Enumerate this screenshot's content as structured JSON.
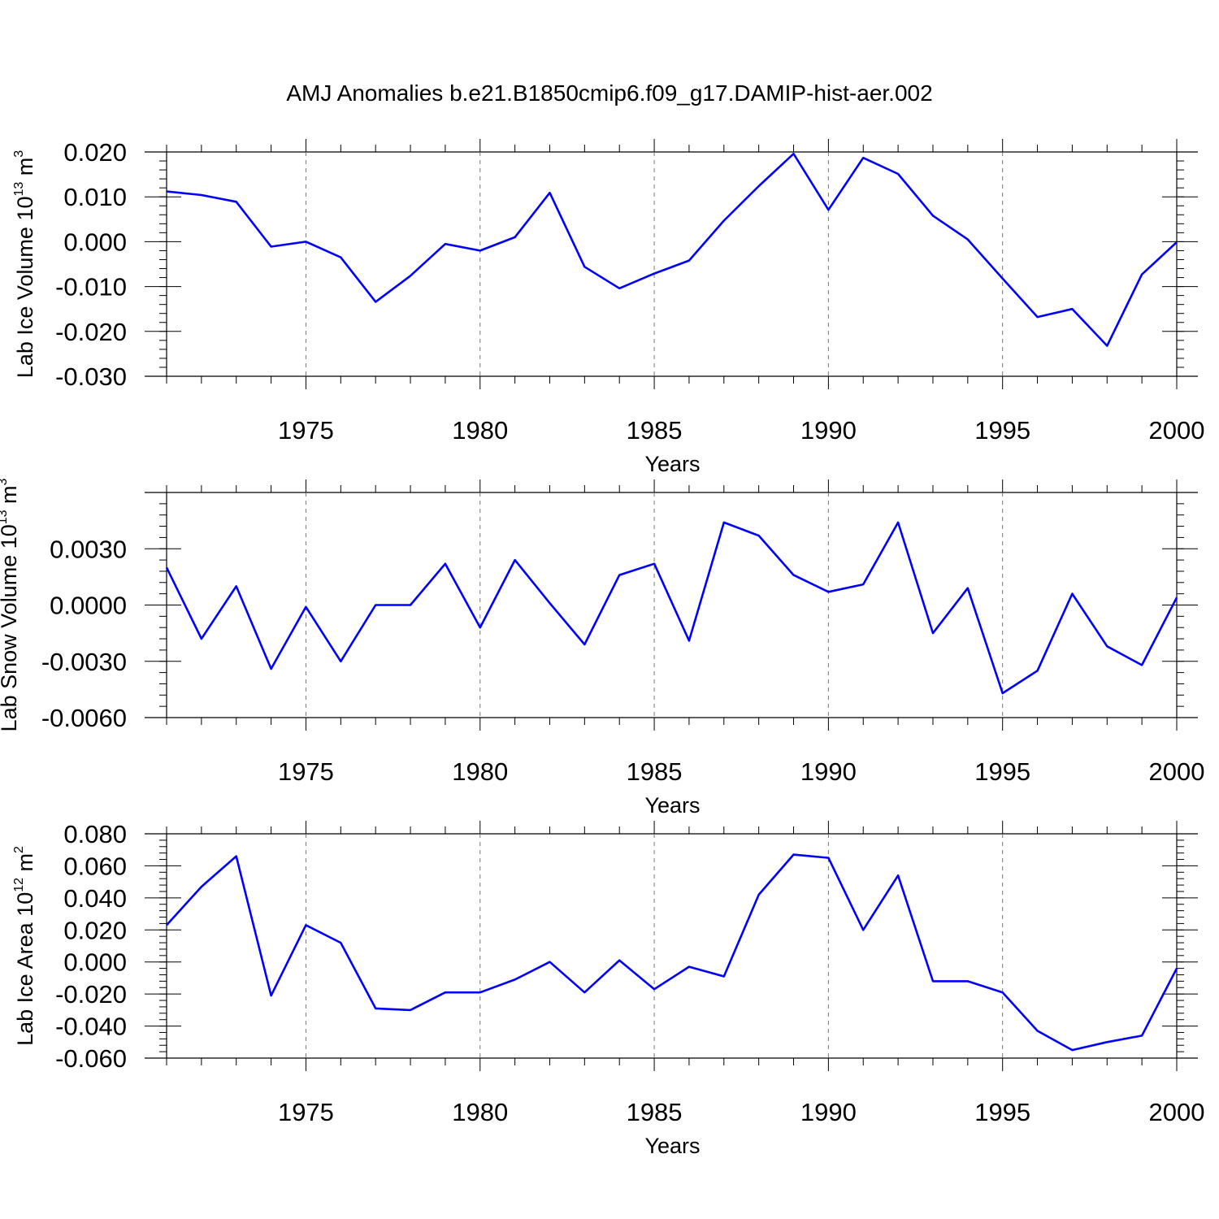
{
  "title": "AMJ Anomalies b.e21.B1850cmip6.f09_g17.DAMIP-hist-aer.002",
  "colors": {
    "line": "#0000ff",
    "axis": "#000000",
    "grid": "#777777"
  },
  "chart_data": [
    {
      "type": "line",
      "name": "ice-volume",
      "ylabel": {
        "base": "Lab Ice Volume 10",
        "exp": "13",
        "unit": " m",
        "unit_exp": "3"
      },
      "xlabel": "Years",
      "xlim": [
        1971,
        2000
      ],
      "ylim": [
        -0.03,
        0.02
      ],
      "x_ticks": [
        1975,
        1980,
        1985,
        1990,
        1995,
        2000
      ],
      "x_tick_labels": [
        "1975",
        "1980",
        "1985",
        "1990",
        "1995",
        "2000"
      ],
      "y_ticks": [
        -0.03,
        -0.02,
        -0.01,
        0.0,
        0.01,
        0.02
      ],
      "y_tick_labels": [
        "-0.030",
        "-0.020",
        "-0.010",
        "0.000",
        "0.010",
        "0.020"
      ],
      "y_minor_step": 0.002,
      "grid": "vertical dashed at major x ticks",
      "x": [
        1971,
        1972,
        1973,
        1974,
        1975,
        1976,
        1977,
        1978,
        1979,
        1980,
        1981,
        1982,
        1983,
        1984,
        1985,
        1986,
        1987,
        1988,
        1989,
        1990,
        1991,
        1992,
        1993,
        1994,
        1995,
        1996,
        1997,
        1998,
        1999,
        2000
      ],
      "values": [
        0.0112,
        0.0104,
        0.0089,
        -0.0011,
        0.0,
        -0.0035,
        -0.0134,
        -0.0076,
        -0.0005,
        -0.002,
        0.001,
        0.0109,
        -0.0056,
        -0.0104,
        -0.0071,
        -0.0042,
        0.0047,
        0.0124,
        0.0196,
        0.0071,
        0.0187,
        0.0151,
        0.0058,
        0.0005,
        -0.0082,
        -0.0168,
        -0.015,
        -0.0232,
        -0.0073,
        -0.0001
      ]
    },
    {
      "type": "line",
      "name": "snow-volume",
      "ylabel": {
        "base": "Lab Snow Volume 10",
        "exp": "13",
        "unit": " m",
        "unit_exp": "3"
      },
      "xlabel": "Years",
      "xlim": [
        1971,
        2000
      ],
      "ylim": [
        -0.006,
        0.006
      ],
      "x_ticks": [
        1975,
        1980,
        1985,
        1990,
        1995,
        2000
      ],
      "x_tick_labels": [
        "1975",
        "1980",
        "1985",
        "1990",
        "1995",
        "2000"
      ],
      "y_ticks": [
        -0.006,
        -0.003,
        0.0,
        0.003
      ],
      "y_tick_labels": [
        "-0.0060",
        "-0.0030",
        "0.0000",
        "0.0030"
      ],
      "y_minor_step": 0.0006,
      "grid": "vertical dashed at major x ticks",
      "x": [
        1971,
        1972,
        1973,
        1974,
        1975,
        1976,
        1977,
        1978,
        1979,
        1980,
        1981,
        1982,
        1983,
        1984,
        1985,
        1986,
        1987,
        1988,
        1989,
        1990,
        1991,
        1992,
        1993,
        1994,
        1995,
        1996,
        1997,
        1998,
        1999,
        2000
      ],
      "values": [
        0.002,
        -0.0018,
        0.001,
        -0.0034,
        -0.0001,
        -0.003,
        0.0,
        0.0,
        0.0022,
        -0.0012,
        0.0024,
        0.0001,
        -0.0021,
        0.0016,
        0.0022,
        -0.0019,
        0.0044,
        0.0037,
        0.0016,
        0.0007,
        0.0011,
        0.0044,
        -0.0015,
        0.0009,
        -0.0047,
        -0.0035,
        0.0006,
        -0.0022,
        -0.0032,
        0.0004
      ]
    },
    {
      "type": "line",
      "name": "ice-area",
      "ylabel": {
        "base": "Lab Ice Area 10",
        "exp": "12",
        "unit": " m",
        "unit_exp": "2"
      },
      "xlabel": "Years",
      "xlim": [
        1971,
        2000
      ],
      "ylim": [
        -0.06,
        0.08
      ],
      "x_ticks": [
        1975,
        1980,
        1985,
        1990,
        1995,
        2000
      ],
      "x_tick_labels": [
        "1975",
        "1980",
        "1985",
        "1990",
        "1995",
        "2000"
      ],
      "y_ticks": [
        -0.06,
        -0.04,
        -0.02,
        0.0,
        0.02,
        0.04,
        0.06,
        0.08
      ],
      "y_tick_labels": [
        "-0.060",
        "-0.040",
        "-0.020",
        "0.000",
        "0.020",
        "0.040",
        "0.060",
        "0.080"
      ],
      "y_minor_step": 0.004,
      "grid": "vertical dashed at major x ticks",
      "x": [
        1971,
        1972,
        1973,
        1974,
        1975,
        1976,
        1977,
        1978,
        1979,
        1980,
        1981,
        1982,
        1983,
        1984,
        1985,
        1986,
        1987,
        1988,
        1989,
        1990,
        1991,
        1992,
        1993,
        1994,
        1995,
        1996,
        1997,
        1998,
        1999,
        2000
      ],
      "values": [
        0.023,
        0.047,
        0.066,
        -0.021,
        0.023,
        0.012,
        -0.029,
        -0.03,
        -0.019,
        -0.019,
        -0.011,
        -0.0,
        -0.019,
        0.001,
        -0.017,
        -0.003,
        -0.009,
        0.042,
        0.067,
        0.065,
        0.02,
        0.054,
        -0.012,
        -0.012,
        -0.019,
        -0.043,
        -0.055,
        -0.05,
        -0.046,
        -0.004
      ]
    }
  ]
}
